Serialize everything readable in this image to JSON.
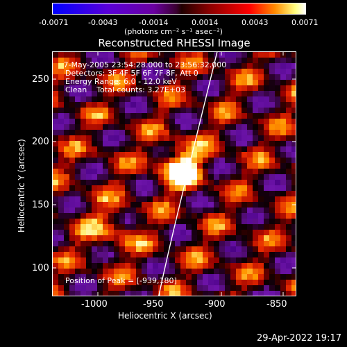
{
  "colorbar": {
    "ticks": [
      "-0.0071",
      "-0.0043",
      "-0.0014",
      "0.0014",
      "0.0043",
      "0.0071"
    ],
    "units": "(photons cm⁻² s⁻¹ asec⁻²)"
  },
  "plot": {
    "title": "Reconstructed RHESSI Image",
    "info_lines": [
      " 7-May-2005 23:54:28.000 to 23:56:32.000",
      "Detectors: 3F 4F 5F 6F 7F 8F, Att 0",
      "Energy Range: 6.0 - 12.0 keV",
      "Clean    Total counts: 3.27E+03"
    ],
    "peak_label": "Position of Peak = [-939,180]",
    "xlabel": "Heliocentric X (arcsec)",
    "ylabel": "Heliocentric Y (arcsec)",
    "xticks": [
      "-1000",
      "-950",
      "-900",
      "-850"
    ],
    "yticks": [
      "250",
      "200",
      "150",
      "100"
    ]
  },
  "footer": {
    "timestamp": "29-Apr-2022 19:17"
  },
  "colors": {
    "background": "#000000",
    "limb": "#ffffff"
  }
}
